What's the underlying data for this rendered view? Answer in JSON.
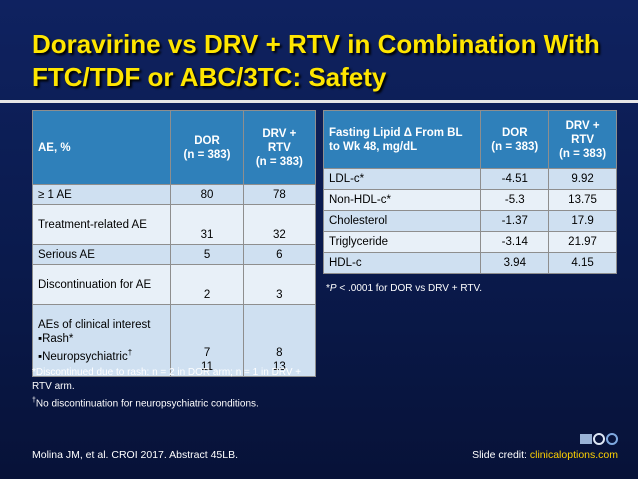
{
  "slide": {
    "title": "Doravirine vs DRV + RTV in Combination With FTC/TDF or ABC/3TC: Safety"
  },
  "table_left": {
    "headers": [
      "AE, %",
      "DOR\n(n = 383)",
      "DRV +\nRTV\n(n = 383)"
    ],
    "rows": [
      {
        "label": "≥ 1 AE",
        "dor": "80",
        "drv": "78"
      },
      {
        "label": "Treatment-related AE",
        "dor": "31",
        "drv": "32"
      },
      {
        "label": "Serious AE",
        "dor": "5",
        "drv": "6"
      },
      {
        "label": "Discontinuation for AE",
        "dor": "2",
        "drv": "3"
      }
    ],
    "interest": {
      "label": "AEs of clinical interest",
      "rash_label": "Rash*",
      "neuro_label": "Neuropsychiatric",
      "neuro_mark": "†",
      "rash_dor": "7",
      "neuro_dor": "11",
      "rash_drv": "8",
      "neuro_drv": "13"
    },
    "footnote_1": "*Discontinued due to rash: n = 2 in DOR arm; n = 1 in DRV + RTV arm.",
    "footnote_2_mark": "†",
    "footnote_2": "No discontinuation for neuropsychiatric conditions."
  },
  "table_right": {
    "headers": [
      "Fasting Lipid Δ From BL to Wk 48, mg/dL",
      "DOR\n(n = 383)",
      "DRV +\nRTV\n(n = 383)"
    ],
    "rows": [
      {
        "label": "LDL-c*",
        "dor": "-4.51",
        "drv": "9.92"
      },
      {
        "label": "Non-HDL-c*",
        "dor": "-5.3",
        "drv": "13.75"
      },
      {
        "label": "Cholesterol",
        "dor": "-1.37",
        "drv": "17.9"
      },
      {
        "label": "Triglyceride",
        "dor": "-3.14",
        "drv": "21.97"
      },
      {
        "label": "HDL-c",
        "dor": "3.94",
        "drv": "4.15"
      }
    ],
    "footnote_p": "P",
    "footnote_rest": " < .0001 for DOR vs DRV + RTV."
  },
  "footer": {
    "citation": "Molina JM, et al. CROI 2017. Abstract 45LB.",
    "credit_label": "Slide credit: ",
    "credit_link": "clinicaloptions.com"
  },
  "colors": {
    "background": "#0b1a4a",
    "title": "#ffe600",
    "header": "#2f80ba",
    "cell": "#cfe0f1",
    "link": "#ffd200"
  },
  "icons": [
    "clinical-care-options-logo"
  ]
}
